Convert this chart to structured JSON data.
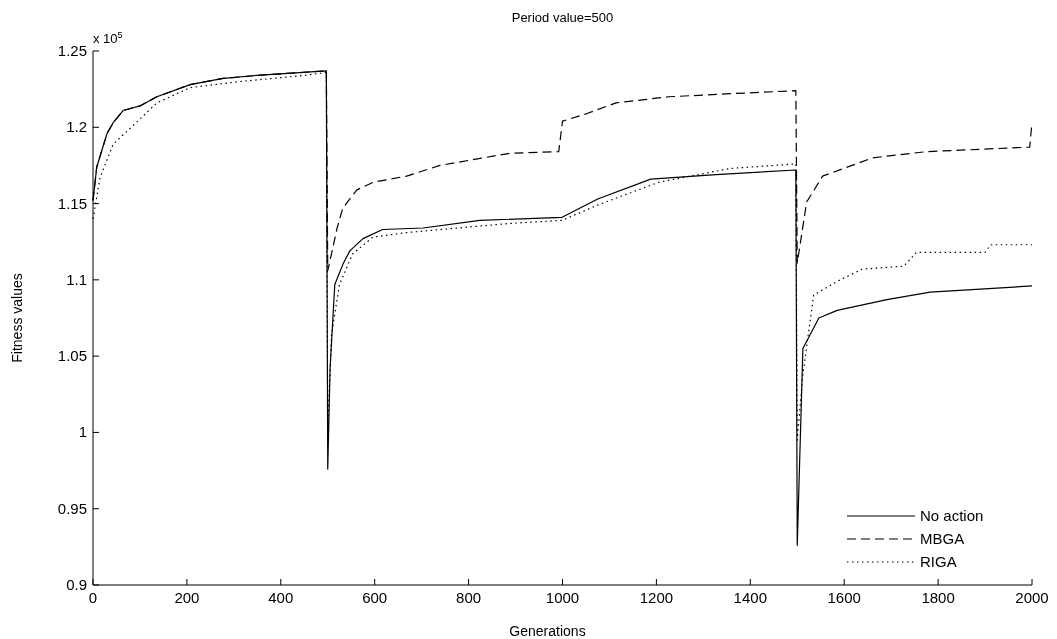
{
  "chart_data": {
    "type": "line",
    "title": "Period value=500",
    "xlabel": "Generations",
    "ylabel": "Fitness values",
    "annotations": [
      "x 10$^{5}$"
    ],
    "xlim": [
      0,
      2000
    ],
    "xticks": [
      0,
      200,
      400,
      600,
      800,
      1000,
      1200,
      1400,
      1600,
      1800,
      2000
    ],
    "ylim": [
      0.9,
      1.25
    ],
    "yticks": [
      0.9,
      0.95,
      1,
      1.05,
      1.1,
      1.15,
      1.2,
      1.25
    ],
    "grid": false,
    "legend": "bottom right",
    "marker": "none",
    "series": [
      {
        "name": "No action",
        "color": "#000000",
        "line_style": "solid",
        "x": [
          0,
          8,
          30,
          43,
          64,
          100,
          136,
          207,
          277,
          349,
          497,
          500,
          505,
          515,
          532,
          547,
          575,
          617,
          703,
          824,
          999,
          1075,
          1188,
          1327,
          1497,
          1500,
          1512,
          1546,
          1585,
          1691,
          1783,
          2000
        ],
        "values": [
          1.152,
          1.174,
          1.196,
          1.203,
          1.211,
          1.214,
          1.22,
          1.228,
          1.232,
          1.234,
          1.237,
          0.976,
          1.042,
          1.097,
          1.11,
          1.119,
          1.127,
          1.133,
          1.134,
          1.139,
          1.141,
          1.153,
          1.166,
          1.169,
          1.172,
          0.926,
          1.055,
          1.075,
          1.08,
          1.087,
          1.092,
          1.096
        ]
      },
      {
        "name": "MBGA",
        "color": "#000000",
        "line_style": "dashed",
        "x": [
          0,
          8,
          30,
          43,
          64,
          100,
          136,
          207,
          277,
          349,
          497,
          500,
          520,
          532,
          562,
          597,
          668,
          739,
          888,
          992,
          1000,
          1052,
          1114,
          1227,
          1357,
          1497,
          1500,
          1520,
          1554,
          1661,
          1774,
          1995,
          2000
        ],
        "values": [
          1.152,
          1.174,
          1.196,
          1.203,
          1.211,
          1.214,
          1.22,
          1.228,
          1.232,
          1.234,
          1.237,
          1.106,
          1.134,
          1.147,
          1.159,
          1.164,
          1.168,
          1.175,
          1.183,
          1.184,
          1.204,
          1.209,
          1.216,
          1.22,
          1.222,
          1.224,
          1.111,
          1.151,
          1.168,
          1.18,
          1.184,
          1.187,
          1.203
        ]
      },
      {
        "name": "RIGA",
        "color": "#000000",
        "line_style": "dotted",
        "x": [
          0,
          15,
          43,
          85,
          136,
          207,
          313,
          450,
          497,
          500,
          508,
          525,
          553,
          596,
          668,
          888,
          999,
          1075,
          1205,
          1357,
          1497,
          1500,
          1512,
          1535,
          1585,
          1638,
          1727,
          1754,
          1900,
          1912,
          2000
        ],
        "values": [
          1.14,
          1.167,
          1.189,
          1.201,
          1.216,
          1.226,
          1.23,
          1.234,
          1.236,
          1.001,
          1.064,
          1.097,
          1.117,
          1.128,
          1.131,
          1.137,
          1.139,
          1.149,
          1.164,
          1.173,
          1.176,
          0.995,
          1.038,
          1.09,
          1.099,
          1.107,
          1.109,
          1.118,
          1.118,
          1.123,
          1.123
        ]
      }
    ]
  }
}
